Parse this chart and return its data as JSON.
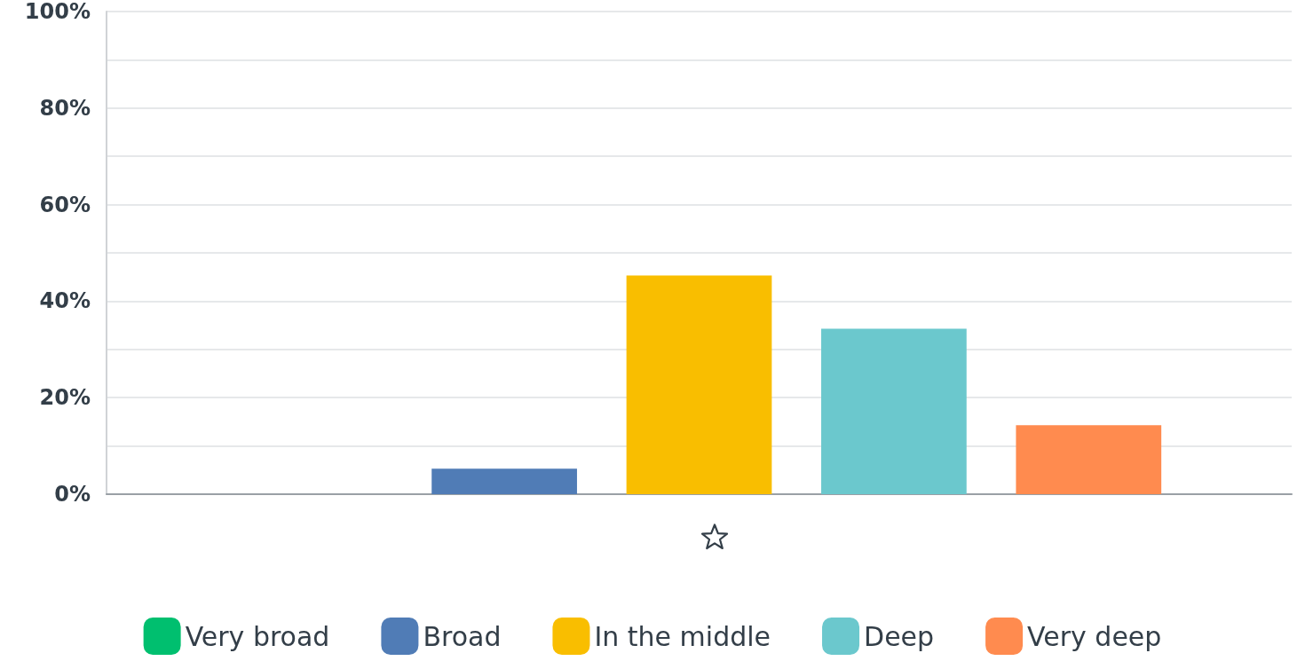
{
  "chart_data": {
    "type": "bar",
    "categories": [
      null
    ],
    "series": [
      {
        "name": "Very broad",
        "color": "#00bf6f",
        "values": [
          0
        ]
      },
      {
        "name": "Broad",
        "color": "#507cb6",
        "values": [
          5.3
        ]
      },
      {
        "name": "In the middle",
        "color": "#f9be00",
        "values": [
          45.3
        ]
      },
      {
        "name": "Deep",
        "color": "#6bc8cd",
        "values": [
          34.3
        ]
      },
      {
        "name": "Very deep",
        "color": "#ff8b4f",
        "values": [
          14.3
        ]
      }
    ],
    "ylim": [
      0,
      100
    ],
    "yticks": [
      {
        "value": 0,
        "label": "0%"
      },
      {
        "value": 10,
        "label": null
      },
      {
        "value": 20,
        "label": "20%"
      },
      {
        "value": 30,
        "label": null
      },
      {
        "value": 40,
        "label": "40%"
      },
      {
        "value": 50,
        "label": null
      },
      {
        "value": 60,
        "label": "60%"
      },
      {
        "value": 70,
        "label": null
      },
      {
        "value": 80,
        "label": "80%"
      },
      {
        "value": 90,
        "label": null
      },
      {
        "value": 100,
        "label": "100%"
      }
    ],
    "grid": "y",
    "legend": "bottom"
  }
}
